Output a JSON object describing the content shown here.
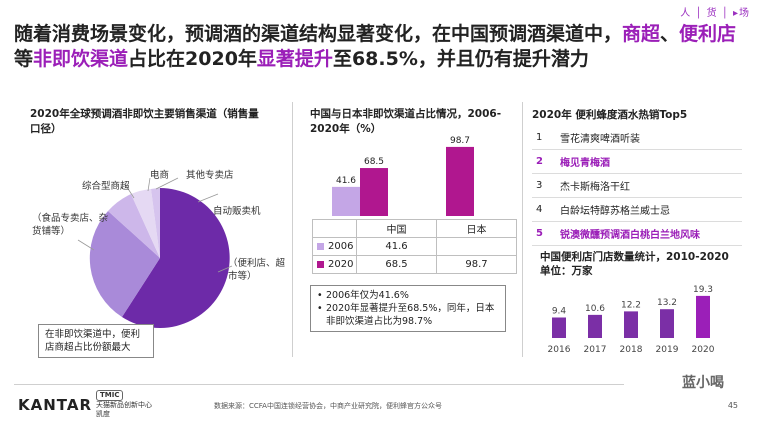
{
  "brand": {
    "logo_text": "人 │ 货 │ ▸场"
  },
  "headline": {
    "p1": "随着消费场景变化，预调酒的渠道结构显著变化，在中国预调酒渠道中，",
    "h1": "商超",
    "p2": "、",
    "h2": "便利店",
    "p3": "等",
    "h3": "非即饮渠道",
    "p4": "占比在2020年",
    "h4": "显著提升",
    "p5": "至68.5%，并且仍有提升潜力"
  },
  "left": {
    "title": "2020年全球预调酒非即饮主要销售渠道（销售量口径）",
    "labels": {
      "ecommerce": "电商",
      "other_store": "其他专卖店",
      "hypermarket": "综合型商超",
      "vending": "自动贩卖机",
      "food_store": "（食品专卖店、杂货铺等）",
      "convenience": "（便利店、超市等）"
    },
    "note": "在非即饮渠道中，便利店商超占比份额最大",
    "colors": {
      "main": "#6d2aa8",
      "second": "#a98ad9",
      "third": "#cdb7ea",
      "fourth": "#e5d9f3"
    }
  },
  "middle": {
    "title": "中国与日本非即饮渠道占比情况，2006-2020年（%）",
    "chart_data": {
      "type": "bar",
      "categories": [
        "中国",
        "日本"
      ],
      "series": [
        {
          "name": "2006",
          "values": [
            41.6,
            null
          ],
          "color": "#c4a6e6"
        },
        {
          "name": "2020",
          "values": [
            68.5,
            98.7
          ],
          "color": "#b0178f"
        }
      ],
      "labels": [
        "41.6",
        "68.5",
        "98.7"
      ],
      "ylim": [
        0,
        100
      ]
    },
    "table": {
      "headers": [
        "",
        "中国",
        "日本"
      ],
      "rows": [
        {
          "label": "2006",
          "china": "41.6",
          "japan": ""
        },
        {
          "label": "2020",
          "china": "68.5",
          "japan": "98.7"
        }
      ]
    },
    "bullets": [
      "2006年仅为41.6%",
      "2020年显著提升至68.5%，同年，日本非即饮渠道占比为98.7%"
    ]
  },
  "right": {
    "title": "2020年 便利蜂度酒水热销Top5",
    "top5": [
      {
        "rank": "1",
        "name": "雪花清爽啤酒听装",
        "highlight": false
      },
      {
        "rank": "2",
        "name": "梅见青梅酒",
        "highlight": true
      },
      {
        "rank": "3",
        "name": "杰卡斯梅洛干红",
        "highlight": false
      },
      {
        "rank": "4",
        "name": "白龄坛特醇苏格兰威士忌",
        "highlight": false
      },
      {
        "rank": "5",
        "name": "锐澳微醺预调酒白桃白兰地风味",
        "highlight": true
      }
    ],
    "store_title": "中国便利店门店数量统计，2010-2020",
    "store_unit": "单位：万家",
    "chart_data": {
      "type": "bar",
      "categories": [
        "2016",
        "2017",
        "2018",
        "2019",
        "2020"
      ],
      "values": [
        9.4,
        10.6,
        12.2,
        13.2,
        19.3
      ],
      "ylabel": "万家",
      "ylim": [
        0,
        22
      ],
      "colors": {
        "normal": "#7b2fa6",
        "highlight": "#9b1fb8"
      }
    }
  },
  "footer": {
    "kantar": "KANTAR",
    "tmic_badge": "TMIC",
    "tmic_text": "天猫新品创新中心 凯度",
    "source": "数据来源：CCFA中国连锁经营协会，中商产业研究院，便利蜂官方公众号",
    "page": "45",
    "watermark": "蓝小喝"
  }
}
